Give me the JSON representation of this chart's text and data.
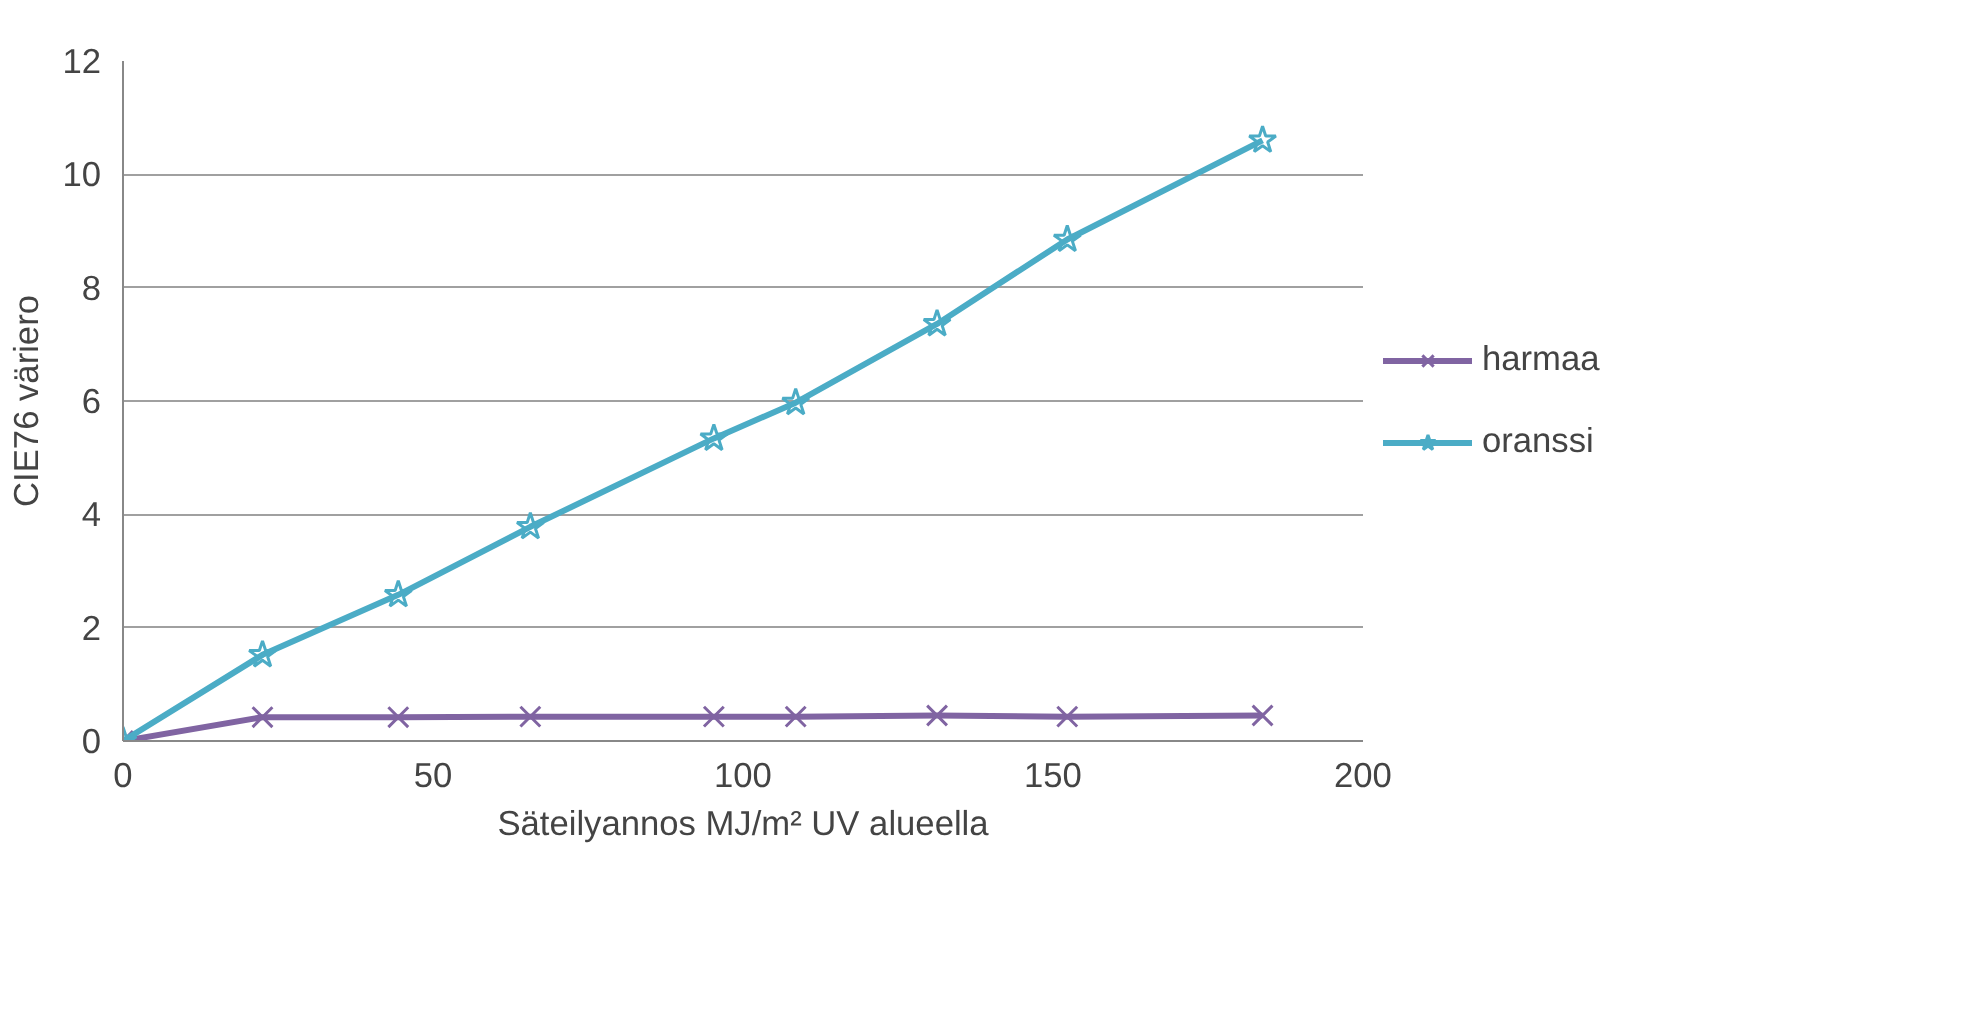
{
  "chart_data": {
    "type": "line",
    "xlabel": "Säteilyannos MJ/m² UV alueella",
    "ylabel": "CIE76 väriero",
    "x": [
      0,
      22.5,
      44.4,
      65.7,
      95.3,
      108.5,
      131.3,
      152.3,
      183.8
    ],
    "series": [
      {
        "name": "harmaa",
        "color": "#8064a2",
        "marker": "cross",
        "values": [
          0,
          0.42,
          0.42,
          0.43,
          0.43,
          0.43,
          0.45,
          0.43,
          0.45
        ]
      },
      {
        "name": "oranssi",
        "color": "#4bacc6",
        "marker": "star",
        "values": [
          0,
          1.52,
          2.58,
          3.78,
          5.34,
          5.97,
          7.36,
          8.85,
          10.6
        ]
      }
    ],
    "xlim": [
      0,
      200
    ],
    "xticks": [
      0,
      50,
      100,
      150,
      200
    ],
    "ylim": [
      0,
      12
    ],
    "yticks": [
      0,
      2,
      4,
      6,
      8,
      10,
      12
    ],
    "grid": "y",
    "legend": "right",
    "line_style": "solid"
  }
}
